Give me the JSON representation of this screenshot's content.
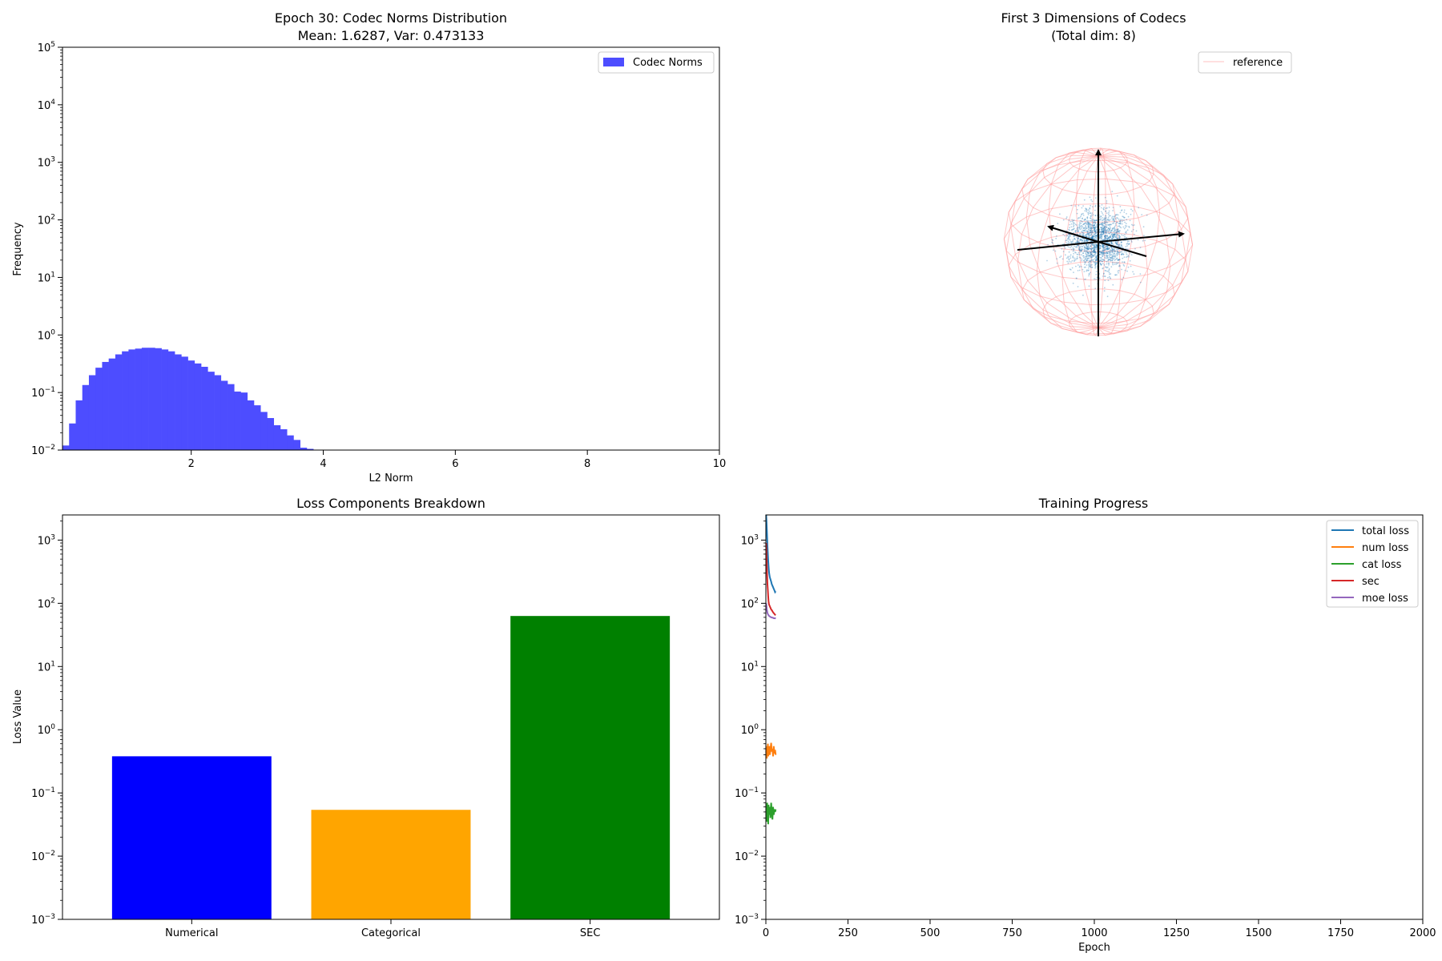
{
  "chart_data": [
    {
      "type": "histogram",
      "title": "Epoch 30: Codec Norms Distribution",
      "subtitle": "Mean: 1.6287, Var: 0.473133",
      "xlabel": "L2 Norm",
      "ylabel": "Frequency",
      "xlim": [
        0.05,
        10
      ],
      "ylim": [
        0.01,
        100000
      ],
      "yscale": "log",
      "x_ticks": [
        "2",
        "4",
        "6",
        "8",
        "10"
      ],
      "y_ticks": [
        {
          "base": "10",
          "exp": "−2"
        },
        {
          "base": "10",
          "exp": "−1"
        },
        {
          "base": "10",
          "exp": "0"
        },
        {
          "base": "10",
          "exp": "1"
        },
        {
          "base": "10",
          "exp": "2"
        },
        {
          "base": "10",
          "exp": "3"
        },
        {
          "base": "10",
          "exp": "4"
        },
        {
          "base": "10",
          "exp": "5"
        }
      ],
      "legend": {
        "label": "Codec Norms",
        "position": "upper right"
      },
      "color": "#4d4dff",
      "bin_width": 0.1,
      "bins": [
        {
          "x0": 0.05,
          "v": 0.012
        },
        {
          "x0": 0.15,
          "v": 0.029
        },
        {
          "x0": 0.25,
          "v": 0.073
        },
        {
          "x0": 0.35,
          "v": 0.135
        },
        {
          "x0": 0.45,
          "v": 0.2
        },
        {
          "x0": 0.55,
          "v": 0.27
        },
        {
          "x0": 0.65,
          "v": 0.34
        },
        {
          "x0": 0.75,
          "v": 0.39
        },
        {
          "x0": 0.85,
          "v": 0.46
        },
        {
          "x0": 0.95,
          "v": 0.52
        },
        {
          "x0": 1.05,
          "v": 0.56
        },
        {
          "x0": 1.15,
          "v": 0.58
        },
        {
          "x0": 1.25,
          "v": 0.6
        },
        {
          "x0": 1.35,
          "v": 0.6
        },
        {
          "x0": 1.45,
          "v": 0.59
        },
        {
          "x0": 1.55,
          "v": 0.56
        },
        {
          "x0": 1.65,
          "v": 0.52
        },
        {
          "x0": 1.75,
          "v": 0.46
        },
        {
          "x0": 1.85,
          "v": 0.42
        },
        {
          "x0": 1.95,
          "v": 0.36
        },
        {
          "x0": 2.05,
          "v": 0.32
        },
        {
          "x0": 2.15,
          "v": 0.28
        },
        {
          "x0": 2.25,
          "v": 0.23
        },
        {
          "x0": 2.35,
          "v": 0.2
        },
        {
          "x0": 2.45,
          "v": 0.16
        },
        {
          "x0": 2.55,
          "v": 0.14
        },
        {
          "x0": 2.65,
          "v": 0.104
        },
        {
          "x0": 2.75,
          "v": 0.1
        },
        {
          "x0": 2.85,
          "v": 0.073
        },
        {
          "x0": 2.95,
          "v": 0.06
        },
        {
          "x0": 3.05,
          "v": 0.046
        },
        {
          "x0": 3.15,
          "v": 0.036
        },
        {
          "x0": 3.25,
          "v": 0.027
        },
        {
          "x0": 3.35,
          "v": 0.023
        },
        {
          "x0": 3.45,
          "v": 0.018
        },
        {
          "x0": 3.55,
          "v": 0.015
        },
        {
          "x0": 3.65,
          "v": 0.011
        },
        {
          "x0": 3.75,
          "v": 0.0105
        }
      ]
    },
    {
      "type": "scatter3d",
      "title": "First 3 Dimensions of Codecs",
      "subtitle": "(Total dim: 8)",
      "total_dim": 8,
      "legend": {
        "label": "reference",
        "position": "upper right"
      },
      "sphere_color": "#ff9999",
      "point_color": "#1f77b4",
      "cluster_radius": 0.3
    },
    {
      "type": "bar",
      "title": "Loss Components Breakdown",
      "ylabel": "Loss Value",
      "yscale": "log",
      "ylim": [
        0.001,
        2500
      ],
      "y_ticks": [
        {
          "base": "10",
          "exp": "−3"
        },
        {
          "base": "10",
          "exp": "−2"
        },
        {
          "base": "10",
          "exp": "−1"
        },
        {
          "base": "10",
          "exp": "0"
        },
        {
          "base": "10",
          "exp": "1"
        },
        {
          "base": "10",
          "exp": "2"
        },
        {
          "base": "10",
          "exp": "3"
        }
      ],
      "categories": [
        "Numerical",
        "Categorical",
        "SEC"
      ],
      "values": [
        0.38,
        0.054,
        63
      ],
      "colors": [
        "#0000ff",
        "#ffa500",
        "#008000"
      ]
    },
    {
      "type": "line",
      "title": "Training Progress",
      "xlabel": "Epoch",
      "yscale": "log",
      "xlim": [
        0,
        2000
      ],
      "ylim": [
        0.001,
        2500
      ],
      "x_ticks": [
        "0",
        "250",
        "500",
        "750",
        "1000",
        "1250",
        "1500",
        "1750",
        "2000"
      ],
      "y_ticks": [
        {
          "base": "10",
          "exp": "−3"
        },
        {
          "base": "10",
          "exp": "−2"
        },
        {
          "base": "10",
          "exp": "−1"
        },
        {
          "base": "10",
          "exp": "0"
        },
        {
          "base": "10",
          "exp": "1"
        },
        {
          "base": "10",
          "exp": "2"
        },
        {
          "base": "10",
          "exp": "3"
        }
      ],
      "legend_position": "upper right",
      "series": [
        {
          "name": "total loss",
          "color": "#1f77b4",
          "x": [
            1,
            2,
            3,
            4,
            5,
            6,
            7,
            8,
            9,
            10,
            12,
            14,
            16,
            18,
            20,
            22,
            24,
            26,
            28,
            30
          ],
          "y": [
            2500,
            2000,
            1500,
            1100,
            800,
            600,
            480,
            400,
            340,
            300,
            260,
            240,
            220,
            200,
            190,
            180,
            170,
            160,
            150,
            155
          ]
        },
        {
          "name": "num loss",
          "color": "#ff7f0e",
          "x": [
            1,
            2,
            3,
            4,
            5,
            6,
            7,
            8,
            9,
            10,
            12,
            14,
            16,
            18,
            20,
            22,
            24,
            26,
            28,
            30
          ],
          "y": [
            0.45,
            0.5,
            0.35,
            0.55,
            0.42,
            0.6,
            0.38,
            0.5,
            0.45,
            0.55,
            0.4,
            0.48,
            0.62,
            0.45,
            0.5,
            0.38,
            0.55,
            0.42,
            0.48,
            0.4
          ]
        },
        {
          "name": "cat loss",
          "color": "#2ca02c",
          "x": [
            1,
            2,
            3,
            4,
            5,
            6,
            7,
            8,
            9,
            10,
            12,
            14,
            16,
            18,
            20,
            22,
            24,
            26,
            28,
            30
          ],
          "y": [
            0.05,
            0.06,
            0.035,
            0.07,
            0.045,
            0.055,
            0.032,
            0.065,
            0.05,
            0.045,
            0.06,
            0.04,
            0.07,
            0.05,
            0.038,
            0.06,
            0.045,
            0.055,
            0.05,
            0.055
          ]
        },
        {
          "name": "sec",
          "color": "#d62728",
          "x": [
            1,
            2,
            3,
            4,
            5,
            6,
            7,
            8,
            9,
            10,
            12,
            14,
            16,
            18,
            20,
            22,
            24,
            26,
            28,
            30
          ],
          "y": [
            900,
            600,
            400,
            280,
            200,
            160,
            130,
            110,
            100,
            95,
            90,
            85,
            80,
            78,
            75,
            72,
            70,
            68,
            66,
            65
          ]
        },
        {
          "name": "moe loss",
          "color": "#9467bd",
          "x": [
            1,
            2,
            3,
            4,
            5,
            6,
            7,
            8,
            9,
            10,
            12,
            14,
            16,
            18,
            20,
            22,
            24,
            26,
            28,
            30
          ],
          "y": [
            100,
            90,
            80,
            75,
            70,
            68,
            66,
            65,
            64,
            63,
            62,
            61,
            60,
            60,
            59,
            59,
            58,
            58,
            58,
            57
          ]
        }
      ]
    }
  ]
}
